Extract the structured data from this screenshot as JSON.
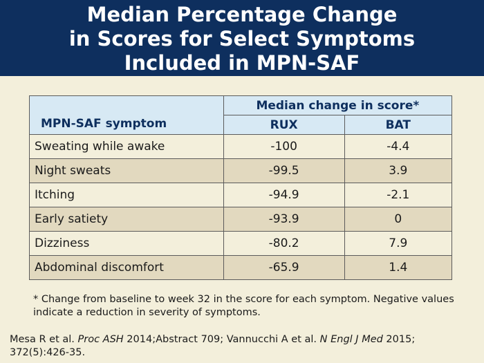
{
  "title": {
    "line1": "Median Percentage Change",
    "line2": "in Scores for Select Symptoms",
    "line3": "Included in MPN-SAF"
  },
  "table": {
    "symptom_header": "MPN-SAF symptom",
    "group_header": "Median change in score*",
    "columns": [
      "RUX",
      "BAT"
    ],
    "rows": [
      {
        "symptom": "Sweating while awake",
        "rux": "-100",
        "bat": "-4.4"
      },
      {
        "symptom": "Night sweats",
        "rux": "-99.5",
        "bat": "3.9"
      },
      {
        "symptom": "Itching",
        "rux": "-94.9",
        "bat": "-2.1"
      },
      {
        "symptom": "Early satiety",
        "rux": "-93.9",
        "bat": "0"
      },
      {
        "symptom": "Dizziness",
        "rux": "-80.2",
        "bat": "7.9"
      },
      {
        "symptom": "Abdominal discomfort",
        "rux": "-65.9",
        "bat": "1.4"
      }
    ]
  },
  "footnote": "* Change from baseline to week 32 in the score for each symptom. Negative values indicate a reduction in severity of symptoms.",
  "citation": {
    "part1": "Mesa R et al. ",
    "journal1": "Proc ASH",
    "part2": " 2014;Abstract 709; Vannucchi A et al. ",
    "journal2": "N Engl J Med",
    "part3": " 2015; 372(5):426-35."
  },
  "colors": {
    "title_band": "#0e2f5e",
    "header_fill": "#d7e9f4",
    "row_light": "#f3efdb",
    "row_dark": "#e2d9bf"
  }
}
